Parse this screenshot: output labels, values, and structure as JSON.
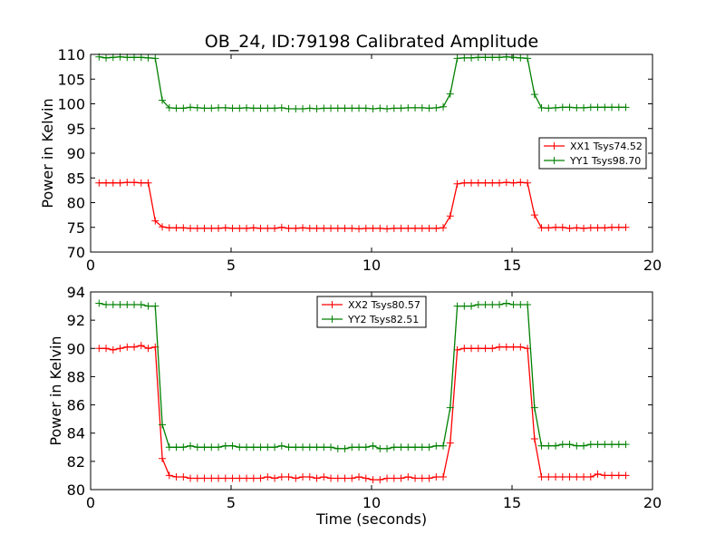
{
  "title": "OB_24, ID:79198 Calibrated Amplitude",
  "chart_data": [
    {
      "type": "line",
      "title": "OB_24, ID:79198 Calibrated Amplitude",
      "xlabel": "",
      "ylabel": "Power in Kelvin",
      "xlim": [
        0,
        20
      ],
      "ylim": [
        70,
        110
      ],
      "xticks": [
        "0",
        "5",
        "10",
        "15",
        "20"
      ],
      "yticks": [
        "70",
        "75",
        "80",
        "85",
        "90",
        "95",
        "100",
        "105",
        "110"
      ],
      "grid": false,
      "legend_position": "center-right",
      "x": [
        0.3,
        0.55,
        0.8,
        1.05,
        1.3,
        1.55,
        1.8,
        2.05,
        2.3,
        2.55,
        2.8,
        3.05,
        3.3,
        3.55,
        3.8,
        4.05,
        4.3,
        4.55,
        4.8,
        5.05,
        5.3,
        5.55,
        5.8,
        6.05,
        6.3,
        6.55,
        6.8,
        7.05,
        7.3,
        7.55,
        7.8,
        8.05,
        8.3,
        8.55,
        8.8,
        9.05,
        9.3,
        9.55,
        9.8,
        10.05,
        10.3,
        10.55,
        10.8,
        11.05,
        11.3,
        11.55,
        11.8,
        12.05,
        12.3,
        12.55,
        12.8,
        13.05,
        13.3,
        13.55,
        13.8,
        14.05,
        14.3,
        14.55,
        14.8,
        15.05,
        15.3,
        15.55,
        15.8,
        16.05,
        16.3,
        16.55,
        16.8,
        17.05,
        17.3,
        17.55,
        17.8,
        18.05,
        18.3,
        18.55,
        18.8,
        19.05
      ],
      "series": [
        {
          "name": "XX1 Tsys74.52",
          "color": "#ff0000",
          "values": [
            84.0,
            84.0,
            84.0,
            84.0,
            84.1,
            84.1,
            84.0,
            84.0,
            76.3,
            75.1,
            74.9,
            74.9,
            74.9,
            74.8,
            74.8,
            74.8,
            74.8,
            74.8,
            74.9,
            74.8,
            74.8,
            74.8,
            74.9,
            74.8,
            74.8,
            74.8,
            75.0,
            74.8,
            74.8,
            74.9,
            74.8,
            74.8,
            74.8,
            74.8,
            74.8,
            74.8,
            74.8,
            74.7,
            74.8,
            74.8,
            74.8,
            74.7,
            74.8,
            74.8,
            74.8,
            74.8,
            74.8,
            74.8,
            74.8,
            74.9,
            77.3,
            83.8,
            84.0,
            84.0,
            84.0,
            84.0,
            84.0,
            84.0,
            84.1,
            84.0,
            84.1,
            84.0,
            77.5,
            74.9,
            74.9,
            75.0,
            75.0,
            74.8,
            74.9,
            74.8,
            74.9,
            74.9,
            74.9,
            75.0,
            75.0,
            75.0
          ]
        },
        {
          "name": "YY1 Tsys98.70",
          "color": "#008000",
          "values": [
            109.5,
            109.3,
            109.4,
            109.5,
            109.4,
            109.4,
            109.4,
            109.3,
            109.2,
            100.7,
            99.2,
            99.1,
            99.1,
            99.3,
            99.2,
            99.1,
            99.1,
            99.2,
            99.2,
            99.1,
            99.1,
            99.2,
            99.1,
            99.1,
            99.1,
            99.1,
            99.2,
            99.0,
            99.0,
            99.0,
            99.1,
            99.0,
            99.1,
            99.1,
            99.1,
            99.1,
            99.1,
            99.1,
            99.1,
            99.0,
            99.1,
            99.0,
            99.1,
            99.1,
            99.2,
            99.2,
            99.2,
            99.1,
            99.2,
            99.4,
            102.0,
            109.2,
            109.3,
            109.3,
            109.4,
            109.4,
            109.4,
            109.4,
            109.5,
            109.4,
            109.3,
            109.2,
            101.9,
            99.2,
            99.1,
            99.2,
            99.3,
            99.3,
            99.2,
            99.2,
            99.3,
            99.3,
            99.3,
            99.3,
            99.3,
            99.3
          ]
        }
      ]
    },
    {
      "type": "line",
      "title": "",
      "xlabel": "Time (seconds)",
      "ylabel": "Power in Kelvin",
      "xlim": [
        0,
        20
      ],
      "ylim": [
        80,
        94
      ],
      "xticks": [
        "0",
        "5",
        "10",
        "15",
        "20"
      ],
      "yticks": [
        "80",
        "82",
        "84",
        "86",
        "88",
        "90",
        "92",
        "94"
      ],
      "grid": false,
      "legend_position": "top-center",
      "x": [
        0.3,
        0.55,
        0.8,
        1.05,
        1.3,
        1.55,
        1.8,
        2.05,
        2.3,
        2.55,
        2.8,
        3.05,
        3.3,
        3.55,
        3.8,
        4.05,
        4.3,
        4.55,
        4.8,
        5.05,
        5.3,
        5.55,
        5.8,
        6.05,
        6.3,
        6.55,
        6.8,
        7.05,
        7.3,
        7.55,
        7.8,
        8.05,
        8.3,
        8.55,
        8.8,
        9.05,
        9.3,
        9.55,
        9.8,
        10.05,
        10.3,
        10.55,
        10.8,
        11.05,
        11.3,
        11.55,
        11.8,
        12.05,
        12.3,
        12.55,
        12.8,
        13.05,
        13.3,
        13.55,
        13.8,
        14.05,
        14.3,
        14.55,
        14.8,
        15.05,
        15.3,
        15.55,
        15.8,
        16.05,
        16.3,
        16.55,
        16.8,
        17.05,
        17.3,
        17.55,
        17.8,
        18.05,
        18.3,
        18.55,
        18.8,
        19.05
      ],
      "series": [
        {
          "name": "XX2 Tsys80.57",
          "color": "#ff0000",
          "values": [
            90.0,
            90.0,
            89.9,
            90.0,
            90.1,
            90.1,
            90.2,
            90.0,
            90.1,
            82.2,
            81.0,
            80.9,
            80.9,
            80.8,
            80.8,
            80.8,
            80.8,
            80.8,
            80.8,
            80.8,
            80.8,
            80.8,
            80.8,
            80.8,
            80.9,
            80.8,
            80.9,
            80.9,
            80.8,
            80.9,
            80.9,
            80.8,
            80.9,
            80.8,
            80.8,
            80.8,
            80.8,
            80.9,
            80.8,
            80.7,
            80.7,
            80.8,
            80.8,
            80.8,
            80.9,
            80.8,
            80.8,
            80.8,
            80.9,
            80.9,
            83.3,
            89.9,
            90.0,
            90.0,
            90.0,
            90.0,
            90.0,
            90.1,
            90.1,
            90.1,
            90.1,
            90.0,
            83.6,
            80.9,
            80.9,
            80.9,
            80.9,
            80.9,
            80.9,
            80.9,
            80.9,
            81.1,
            81.0,
            81.0,
            81.0,
            81.0
          ]
        },
        {
          "name": "YY2 Tsys82.51",
          "color": "#008000",
          "values": [
            93.2,
            93.1,
            93.1,
            93.1,
            93.1,
            93.1,
            93.1,
            93.0,
            93.0,
            84.6,
            83.0,
            83.0,
            83.0,
            83.1,
            83.0,
            83.0,
            83.0,
            83.0,
            83.1,
            83.1,
            83.0,
            83.0,
            83.0,
            83.0,
            83.0,
            83.0,
            83.1,
            83.0,
            83.0,
            83.0,
            83.0,
            83.0,
            83.0,
            83.0,
            82.9,
            82.9,
            83.0,
            83.0,
            83.0,
            83.1,
            82.9,
            82.9,
            83.0,
            83.0,
            83.0,
            83.0,
            83.0,
            83.0,
            83.1,
            83.1,
            85.8,
            93.0,
            93.0,
            93.0,
            93.1,
            93.1,
            93.1,
            93.1,
            93.2,
            93.1,
            93.1,
            93.1,
            85.8,
            83.1,
            83.1,
            83.1,
            83.2,
            83.2,
            83.1,
            83.1,
            83.2,
            83.2,
            83.2,
            83.2,
            83.2,
            83.2
          ]
        }
      ]
    }
  ]
}
